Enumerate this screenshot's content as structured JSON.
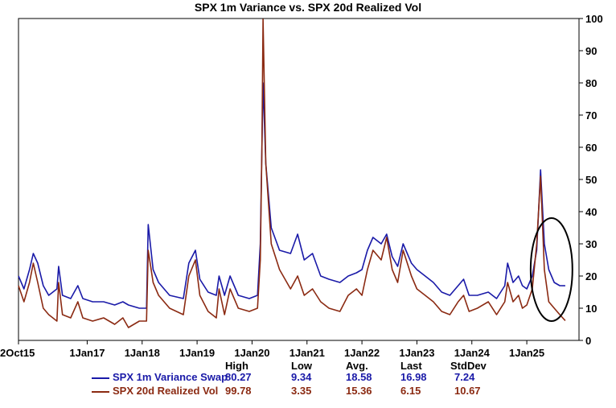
{
  "chart_data": {
    "type": "line",
    "title": "SPX 1m Variance vs. SPX 20d Realized Vol",
    "xlabel": "",
    "ylabel": "",
    "x_range": [
      2015.75,
      2025.95
    ],
    "ylim": [
      0,
      100
    ],
    "y_ticks": [
      0,
      10,
      20,
      30,
      40,
      50,
      60,
      70,
      80,
      90,
      100
    ],
    "x_ticks": [
      {
        "t": 2015.75,
        "label": "2Oct15"
      },
      {
        "t": 2017.0,
        "label": "1Jan17"
      },
      {
        "t": 2018.0,
        "label": "1Jan18"
      },
      {
        "t": 2019.0,
        "label": "1Jan19"
      },
      {
        "t": 2020.0,
        "label": "1Jan20"
      },
      {
        "t": 2021.0,
        "label": "1Jan21"
      },
      {
        "t": 2022.0,
        "label": "1Jan22"
      },
      {
        "t": 2023.0,
        "label": "1Jan23"
      },
      {
        "t": 2024.0,
        "label": "1Jan24"
      },
      {
        "t": 2025.0,
        "label": "1Jan25"
      }
    ],
    "series": [
      {
        "name": "SPX 1m Variance Swap",
        "color": "#1a1aa8",
        "points": [
          [
            2015.75,
            20
          ],
          [
            2015.85,
            16
          ],
          [
            2015.95,
            22
          ],
          [
            2016.02,
            27
          ],
          [
            2016.1,
            24
          ],
          [
            2016.2,
            17
          ],
          [
            2016.3,
            14
          ],
          [
            2016.45,
            16
          ],
          [
            2016.48,
            23
          ],
          [
            2016.55,
            14
          ],
          [
            2016.7,
            13
          ],
          [
            2016.83,
            17
          ],
          [
            2016.92,
            13
          ],
          [
            2017.1,
            12
          ],
          [
            2017.3,
            12
          ],
          [
            2017.5,
            11
          ],
          [
            2017.65,
            12
          ],
          [
            2017.75,
            11
          ],
          [
            2017.95,
            10
          ],
          [
            2018.08,
            10
          ],
          [
            2018.11,
            36
          ],
          [
            2018.2,
            22
          ],
          [
            2018.3,
            18
          ],
          [
            2018.5,
            14
          ],
          [
            2018.75,
            13
          ],
          [
            2018.85,
            24
          ],
          [
            2018.97,
            28
          ],
          [
            2019.05,
            19
          ],
          [
            2019.2,
            15
          ],
          [
            2019.35,
            14
          ],
          [
            2019.4,
            20
          ],
          [
            2019.5,
            14
          ],
          [
            2019.6,
            20
          ],
          [
            2019.75,
            14
          ],
          [
            2019.95,
            13
          ],
          [
            2020.1,
            14
          ],
          [
            2020.15,
            30
          ],
          [
            2020.18,
            60
          ],
          [
            2020.2,
            80
          ],
          [
            2020.25,
            55
          ],
          [
            2020.35,
            35
          ],
          [
            2020.5,
            28
          ],
          [
            2020.7,
            27
          ],
          [
            2020.83,
            33
          ],
          [
            2020.95,
            25
          ],
          [
            2021.1,
            27
          ],
          [
            2021.25,
            20
          ],
          [
            2021.4,
            19
          ],
          [
            2021.6,
            18
          ],
          [
            2021.75,
            20
          ],
          [
            2021.9,
            21
          ],
          [
            2022.0,
            22
          ],
          [
            2022.1,
            28
          ],
          [
            2022.2,
            32
          ],
          [
            2022.35,
            30
          ],
          [
            2022.45,
            33
          ],
          [
            2022.55,
            26
          ],
          [
            2022.65,
            23
          ],
          [
            2022.75,
            30
          ],
          [
            2022.9,
            24
          ],
          [
            2023.0,
            22
          ],
          [
            2023.15,
            20
          ],
          [
            2023.3,
            18
          ],
          [
            2023.45,
            15
          ],
          [
            2023.6,
            14
          ],
          [
            2023.75,
            17
          ],
          [
            2023.85,
            19
          ],
          [
            2023.95,
            14
          ],
          [
            2024.1,
            14
          ],
          [
            2024.3,
            15
          ],
          [
            2024.45,
            13
          ],
          [
            2024.6,
            17
          ],
          [
            2024.65,
            24
          ],
          [
            2024.75,
            18
          ],
          [
            2024.85,
            20
          ],
          [
            2024.92,
            17
          ],
          [
            2025.0,
            16
          ],
          [
            2025.1,
            20
          ],
          [
            2025.18,
            28
          ],
          [
            2025.25,
            53
          ],
          [
            2025.32,
            30
          ],
          [
            2025.4,
            22
          ],
          [
            2025.5,
            18
          ],
          [
            2025.6,
            17
          ],
          [
            2025.7,
            16.98
          ]
        ]
      },
      {
        "name": "SPX 20d Realized Vol",
        "color": "#8b2a12",
        "points": [
          [
            2015.75,
            17
          ],
          [
            2015.85,
            12
          ],
          [
            2015.95,
            18
          ],
          [
            2016.02,
            24
          ],
          [
            2016.1,
            18
          ],
          [
            2016.2,
            10
          ],
          [
            2016.3,
            8
          ],
          [
            2016.45,
            6
          ],
          [
            2016.48,
            18
          ],
          [
            2016.55,
            8
          ],
          [
            2016.7,
            7
          ],
          [
            2016.83,
            12
          ],
          [
            2016.92,
            7
          ],
          [
            2017.1,
            6
          ],
          [
            2017.3,
            7
          ],
          [
            2017.5,
            5
          ],
          [
            2017.65,
            7
          ],
          [
            2017.75,
            4
          ],
          [
            2017.95,
            6
          ],
          [
            2018.08,
            6
          ],
          [
            2018.11,
            28
          ],
          [
            2018.2,
            18
          ],
          [
            2018.3,
            14
          ],
          [
            2018.5,
            10
          ],
          [
            2018.75,
            8
          ],
          [
            2018.85,
            20
          ],
          [
            2018.97,
            25
          ],
          [
            2019.05,
            14
          ],
          [
            2019.2,
            9
          ],
          [
            2019.35,
            7
          ],
          [
            2019.4,
            16
          ],
          [
            2019.5,
            8
          ],
          [
            2019.6,
            16
          ],
          [
            2019.75,
            10
          ],
          [
            2019.95,
            9
          ],
          [
            2020.1,
            10
          ],
          [
            2020.15,
            25
          ],
          [
            2020.18,
            60
          ],
          [
            2020.2,
            99.78
          ],
          [
            2020.25,
            55
          ],
          [
            2020.35,
            30
          ],
          [
            2020.5,
            22
          ],
          [
            2020.7,
            16
          ],
          [
            2020.83,
            20
          ],
          [
            2020.95,
            14
          ],
          [
            2021.1,
            16
          ],
          [
            2021.25,
            12
          ],
          [
            2021.4,
            10
          ],
          [
            2021.6,
            9
          ],
          [
            2021.75,
            14
          ],
          [
            2021.9,
            16
          ],
          [
            2022.0,
            14
          ],
          [
            2022.1,
            22
          ],
          [
            2022.2,
            28
          ],
          [
            2022.35,
            25
          ],
          [
            2022.45,
            32
          ],
          [
            2022.55,
            22
          ],
          [
            2022.65,
            18
          ],
          [
            2022.75,
            28
          ],
          [
            2022.9,
            20
          ],
          [
            2023.0,
            16
          ],
          [
            2023.15,
            14
          ],
          [
            2023.3,
            12
          ],
          [
            2023.45,
            9
          ],
          [
            2023.6,
            8
          ],
          [
            2023.75,
            12
          ],
          [
            2023.85,
            14
          ],
          [
            2023.95,
            9
          ],
          [
            2024.1,
            10
          ],
          [
            2024.3,
            12
          ],
          [
            2024.45,
            8
          ],
          [
            2024.6,
            12
          ],
          [
            2024.65,
            18
          ],
          [
            2024.75,
            12
          ],
          [
            2024.85,
            14
          ],
          [
            2024.92,
            10
          ],
          [
            2025.0,
            11
          ],
          [
            2025.1,
            16
          ],
          [
            2025.18,
            30
          ],
          [
            2025.25,
            51
          ],
          [
            2025.32,
            22
          ],
          [
            2025.4,
            12
          ],
          [
            2025.5,
            10
          ],
          [
            2025.6,
            8
          ],
          [
            2025.7,
            6.15
          ]
        ]
      }
    ],
    "annotation": {
      "type": "ellipse",
      "center": [
        2025.45,
        22
      ],
      "rx_years": 0.38,
      "ry_value": 16
    }
  },
  "stats": {
    "headers": [
      "High",
      "Low",
      "Avg.",
      "Last",
      "StdDev"
    ],
    "rows": [
      {
        "name": "SPX 1m Variance Swap",
        "values": [
          "80.27",
          "9.34",
          "18.58",
          "16.98",
          "7.24"
        ],
        "color": "#1a1aa8"
      },
      {
        "name": "SPX 20d Realized Vol",
        "values": [
          "99.78",
          "3.35",
          "15.36",
          "6.15",
          "10.67"
        ],
        "color": "#8b2a12"
      }
    ]
  }
}
